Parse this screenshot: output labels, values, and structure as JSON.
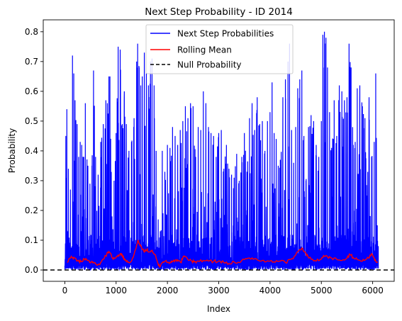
{
  "chart_data": {
    "type": "line",
    "title": "Next Step Probability - ID 2014",
    "xlabel": "Index",
    "ylabel": "Probability",
    "xlim": [
      -420,
      6420
    ],
    "ylim": [
      -0.038,
      0.84
    ],
    "xticks": [
      0,
      1000,
      2000,
      3000,
      4000,
      5000,
      6000
    ],
    "xtick_labels": [
      "0",
      "1000",
      "2000",
      "3000",
      "4000",
      "5000",
      "6000"
    ],
    "yticks": [
      0.0,
      0.1,
      0.2,
      0.3,
      0.4,
      0.5,
      0.6,
      0.7,
      0.8
    ],
    "ytick_labels": [
      "0.0",
      "0.1",
      "0.2",
      "0.3",
      "0.4",
      "0.5",
      "0.6",
      "0.7",
      "0.8"
    ],
    "grid": false,
    "legend_position": "top-center",
    "x_range": [
      0,
      6110
    ],
    "series": [
      {
        "name": "Next Step Probabilities",
        "color": "#0000ff",
        "style": "solid",
        "peaks": [
          [
            20,
            0.45
          ],
          [
            40,
            0.54
          ],
          [
            70,
            0.34
          ],
          [
            110,
            0.27
          ],
          [
            150,
            0.72
          ],
          [
            175,
            0.66
          ],
          [
            200,
            0.57
          ],
          [
            240,
            0.49
          ],
          [
            270,
            0.38
          ],
          [
            300,
            0.43
          ],
          [
            330,
            0.42
          ],
          [
            370,
            0.38
          ],
          [
            400,
            0.56
          ],
          [
            450,
            0.35
          ],
          [
            490,
            0.29
          ],
          [
            530,
            0.35
          ],
          [
            560,
            0.67
          ],
          [
            600,
            0.38
          ],
          [
            650,
            0.32
          ],
          [
            700,
            0.43
          ],
          [
            750,
            0.49
          ],
          [
            800,
            0.57
          ],
          [
            830,
            0.56
          ],
          [
            860,
            0.65
          ],
          [
            880,
            0.65
          ],
          [
            920,
            0.18
          ],
          [
            960,
            0.3
          ],
          [
            1000,
            0.46
          ],
          [
            1040,
            0.75
          ],
          [
            1080,
            0.74
          ],
          [
            1120,
            0.49
          ],
          [
            1160,
            0.6
          ],
          [
            1200,
            0.49
          ],
          [
            1250,
            0.4
          ],
          [
            1300,
            0.43
          ],
          [
            1350,
            0.51
          ],
          [
            1400,
            0.7
          ],
          [
            1420,
            0.76
          ],
          [
            1450,
            0.68
          ],
          [
            1480,
            0.62
          ],
          [
            1510,
            0.65
          ],
          [
            1550,
            0.73
          ],
          [
            1590,
            0.66
          ],
          [
            1630,
            0.62
          ],
          [
            1670,
            0.7
          ],
          [
            1700,
            0.71
          ],
          [
            1740,
            0.62
          ],
          [
            1780,
            0.4
          ],
          [
            1820,
            0.17
          ],
          [
            1860,
            0.13
          ],
          [
            1900,
            0.4
          ],
          [
            1950,
            0.33
          ],
          [
            2000,
            0.42
          ],
          [
            2050,
            0.41
          ],
          [
            2100,
            0.48
          ],
          [
            2150,
            0.45
          ],
          [
            2200,
            0.42
          ],
          [
            2250,
            0.47
          ],
          [
            2300,
            0.5
          ],
          [
            2350,
            0.55
          ],
          [
            2400,
            0.51
          ],
          [
            2450,
            0.56
          ],
          [
            2500,
            0.55
          ],
          [
            2550,
            0.38
          ],
          [
            2600,
            0.48
          ],
          [
            2650,
            0.47
          ],
          [
            2700,
            0.6
          ],
          [
            2750,
            0.56
          ],
          [
            2800,
            0.48
          ],
          [
            2850,
            0.46
          ],
          [
            2900,
            0.45
          ],
          [
            2950,
            0.38
          ],
          [
            3000,
            0.46
          ],
          [
            3050,
            0.47
          ],
          [
            3100,
            0.34
          ],
          [
            3150,
            0.42
          ],
          [
            3200,
            0.34
          ],
          [
            3250,
            0.32
          ],
          [
            3300,
            0.31
          ],
          [
            3350,
            0.39
          ],
          [
            3400,
            0.3
          ],
          [
            3450,
            0.38
          ],
          [
            3500,
            0.46
          ],
          [
            3550,
            0.33
          ],
          [
            3600,
            0.51
          ],
          [
            3650,
            0.56
          ],
          [
            3700,
            0.47
          ],
          [
            3750,
            0.58
          ],
          [
            3800,
            0.49
          ],
          [
            3850,
            0.5
          ],
          [
            3900,
            0.4
          ],
          [
            3950,
            0.5
          ],
          [
            4000,
            0.53
          ],
          [
            4040,
            0.63
          ],
          [
            4080,
            0.46
          ],
          [
            4120,
            0.44
          ],
          [
            4160,
            0.35
          ],
          [
            4200,
            0.37
          ],
          [
            4250,
            0.58
          ],
          [
            4300,
            0.64
          ],
          [
            4350,
            0.7
          ],
          [
            4380,
            0.76
          ],
          [
            4420,
            0.47
          ],
          [
            4460,
            0.36
          ],
          [
            4500,
            0.48
          ],
          [
            4540,
            0.61
          ],
          [
            4580,
            0.64
          ],
          [
            4620,
            0.67
          ],
          [
            4660,
            0.45
          ],
          [
            4700,
            0.3
          ],
          [
            4750,
            0.48
          ],
          [
            4800,
            0.52
          ],
          [
            4850,
            0.5
          ],
          [
            4900,
            0.42
          ],
          [
            4950,
            0.38
          ],
          [
            5000,
            0.5
          ],
          [
            5030,
            0.79
          ],
          [
            5060,
            0.8
          ],
          [
            5090,
            0.78
          ],
          [
            5120,
            0.68
          ],
          [
            5160,
            0.53
          ],
          [
            5200,
            0.41
          ],
          [
            5250,
            0.57
          ],
          [
            5300,
            0.45
          ],
          [
            5350,
            0.62
          ],
          [
            5400,
            0.6
          ],
          [
            5450,
            0.57
          ],
          [
            5500,
            0.58
          ],
          [
            5540,
            0.76
          ],
          [
            5580,
            0.68
          ],
          [
            5620,
            0.42
          ],
          [
            5660,
            0.43
          ],
          [
            5700,
            0.61
          ],
          [
            5750,
            0.62
          ],
          [
            5800,
            0.55
          ],
          [
            5850,
            0.51
          ],
          [
            5890,
            0.25
          ],
          [
            5930,
            0.58
          ],
          [
            5980,
            0.38
          ],
          [
            6030,
            0.43
          ],
          [
            6060,
            0.66
          ],
          [
            6090,
            0.15
          ],
          [
            6110,
            0.08
          ]
        ]
      },
      {
        "name": "Rolling Mean",
        "color": "#ff0000",
        "style": "solid",
        "points": [
          [
            50,
            0.025
          ],
          [
            100,
            0.04
          ],
          [
            150,
            0.042
          ],
          [
            200,
            0.04
          ],
          [
            260,
            0.03
          ],
          [
            320,
            0.028
          ],
          [
            380,
            0.037
          ],
          [
            440,
            0.032
          ],
          [
            500,
            0.024
          ],
          [
            560,
            0.026
          ],
          [
            620,
            0.017
          ],
          [
            680,
            0.018
          ],
          [
            740,
            0.036
          ],
          [
            800,
            0.048
          ],
          [
            840,
            0.06
          ],
          [
            880,
            0.058
          ],
          [
            930,
            0.04
          ],
          [
            980,
            0.04
          ],
          [
            1040,
            0.05
          ],
          [
            1080,
            0.055
          ],
          [
            1120,
            0.05
          ],
          [
            1160,
            0.038
          ],
          [
            1200,
            0.028
          ],
          [
            1260,
            0.024
          ],
          [
            1320,
            0.04
          ],
          [
            1380,
            0.07
          ],
          [
            1420,
            0.098
          ],
          [
            1450,
            0.09
          ],
          [
            1480,
            0.08
          ],
          [
            1520,
            0.068
          ],
          [
            1560,
            0.063
          ],
          [
            1600,
            0.068
          ],
          [
            1640,
            0.06
          ],
          [
            1700,
            0.066
          ],
          [
            1760,
            0.052
          ],
          [
            1800,
            0.03
          ],
          [
            1850,
            0.01
          ],
          [
            1900,
            0.024
          ],
          [
            1960,
            0.03
          ],
          [
            2020,
            0.026
          ],
          [
            2080,
            0.03
          ],
          [
            2140,
            0.028
          ],
          [
            2200,
            0.034
          ],
          [
            2260,
            0.025
          ],
          [
            2300,
            0.04
          ],
          [
            2340,
            0.045
          ],
          [
            2400,
            0.035
          ],
          [
            2460,
            0.032
          ],
          [
            2520,
            0.027
          ],
          [
            2600,
            0.03
          ],
          [
            2700,
            0.032
          ],
          [
            2800,
            0.03
          ],
          [
            2900,
            0.029
          ],
          [
            3000,
            0.03
          ],
          [
            3100,
            0.025
          ],
          [
            3200,
            0.022
          ],
          [
            3300,
            0.027
          ],
          [
            3400,
            0.025
          ],
          [
            3500,
            0.035
          ],
          [
            3600,
            0.04
          ],
          [
            3700,
            0.038
          ],
          [
            3800,
            0.03
          ],
          [
            3900,
            0.027
          ],
          [
            4000,
            0.03
          ],
          [
            4100,
            0.026
          ],
          [
            4200,
            0.03
          ],
          [
            4300,
            0.025
          ],
          [
            4400,
            0.035
          ],
          [
            4500,
            0.05
          ],
          [
            4560,
            0.065
          ],
          [
            4620,
            0.074
          ],
          [
            4680,
            0.06
          ],
          [
            4740,
            0.045
          ],
          [
            4800,
            0.036
          ],
          [
            4900,
            0.03
          ],
          [
            5000,
            0.037
          ],
          [
            5060,
            0.046
          ],
          [
            5120,
            0.044
          ],
          [
            5200,
            0.04
          ],
          [
            5300,
            0.036
          ],
          [
            5400,
            0.032
          ],
          [
            5500,
            0.04
          ],
          [
            5560,
            0.052
          ],
          [
            5620,
            0.042
          ],
          [
            5700,
            0.035
          ],
          [
            5800,
            0.03
          ],
          [
            5860,
            0.035
          ],
          [
            5920,
            0.04
          ],
          [
            5980,
            0.055
          ],
          [
            6020,
            0.043
          ],
          [
            6060,
            0.03
          ],
          [
            6100,
            0.027
          ]
        ]
      },
      {
        "name": "Null Probability",
        "color": "#000000",
        "style": "dashed",
        "y": 0.0
      }
    ]
  }
}
